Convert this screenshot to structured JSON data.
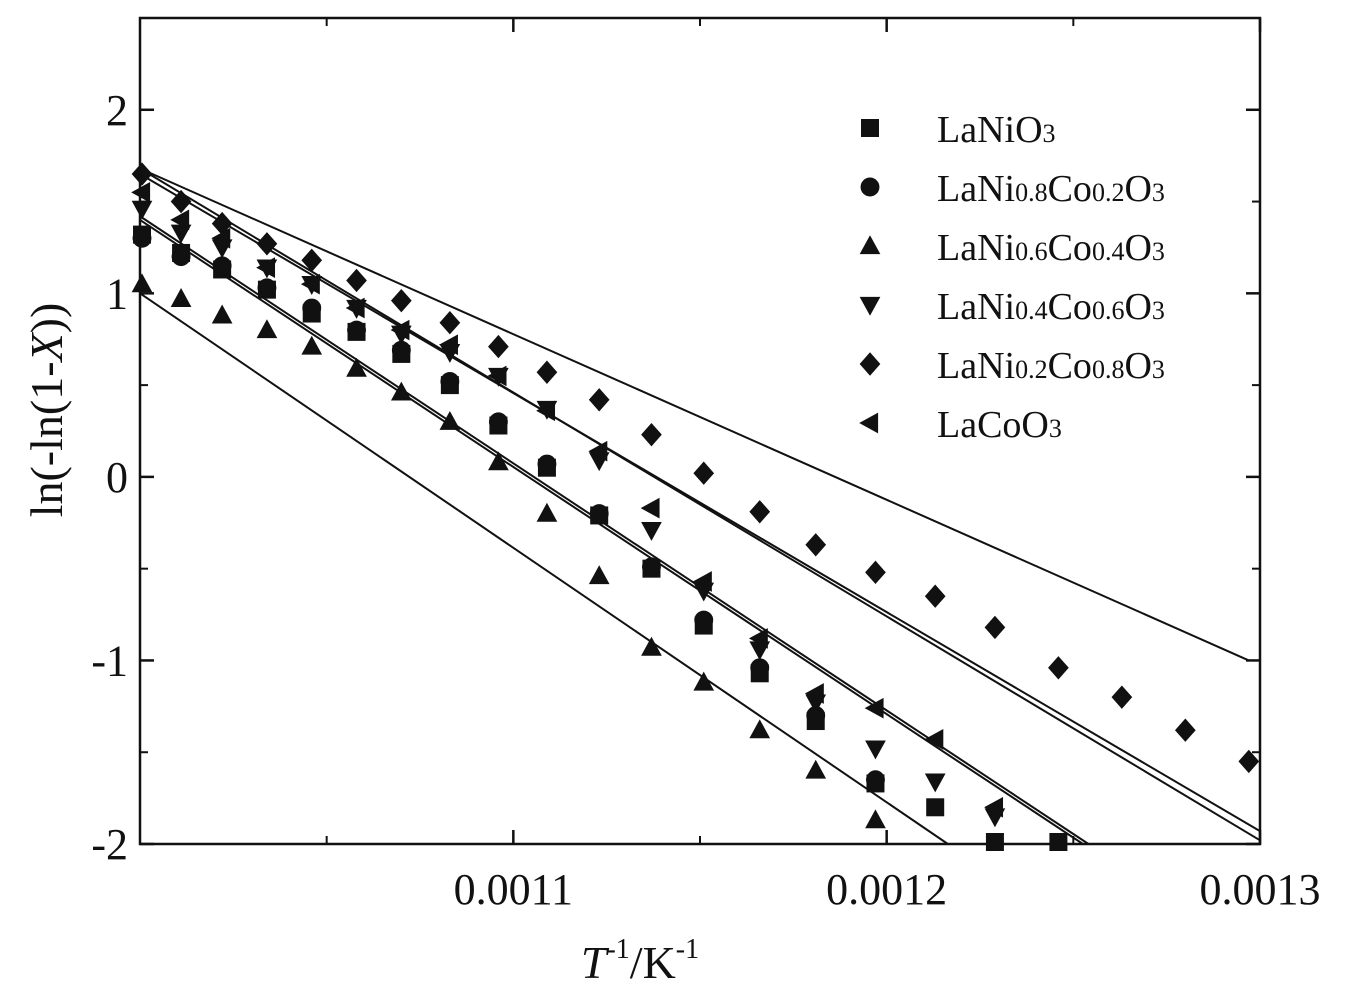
{
  "chart_data": {
    "type": "scatter",
    "title": "",
    "xlabel": {
      "italic": "T",
      "sup1": "-1",
      "mid": "/K",
      "sup2": "-1"
    },
    "ylabel": {
      "before": "ln(-ln(1-",
      "italic": "X",
      "after": "))"
    },
    "xlim": [
      0.001,
      0.0013
    ],
    "ylim": [
      -2,
      2.5
    ],
    "x_ticks": [
      0.0011,
      0.0012,
      0.0013
    ],
    "x_tick_labels": [
      "0.0011",
      "0.0012",
      "0.0013"
    ],
    "y_ticks": [
      -2,
      -1,
      0,
      1,
      2
    ],
    "y_tick_labels": [
      "-2",
      "-1",
      "0",
      "1",
      "2"
    ],
    "grid": false,
    "legend_position": "top-right",
    "series": [
      {
        "name": "LaNiO3",
        "label_parts": [
          [
            "LaNiO",
            ""
          ],
          [
            "3",
            "sub"
          ]
        ],
        "marker": "square",
        "x": [
          0.001,
          0.001011,
          0.001022,
          0.001034,
          0.001046,
          0.001058,
          0.00107,
          0.001083,
          0.001096,
          0.001109,
          0.001123,
          0.001137,
          0.001151,
          0.001166,
          0.001181,
          0.001197,
          0.001213,
          0.001229,
          0.001246
        ],
        "y": [
          1.32,
          1.22,
          1.13,
          1.02,
          0.89,
          0.79,
          0.67,
          0.5,
          0.28,
          0.05,
          -0.21,
          -0.5,
          -0.81,
          -1.07,
          -1.33,
          -1.67,
          -1.8,
          -2.0,
          -2.05
        ],
        "fit": [
          [
            0.001,
            1.42
          ],
          [
            0.00126,
            -2.08
          ]
        ]
      },
      {
        "name": "LaNi0.8Co0.2O3",
        "label_parts": [
          [
            "LaNi",
            ""
          ],
          [
            "0.8",
            "sub"
          ],
          [
            "Co",
            ""
          ],
          [
            "0.2",
            "sub"
          ],
          [
            "O",
            ""
          ],
          [
            "3",
            "sub"
          ]
        ],
        "marker": "circle",
        "x": [
          0.001,
          0.001011,
          0.001022,
          0.001034,
          0.001046,
          0.001058,
          0.00107,
          0.001083,
          0.001096,
          0.001109,
          0.001123,
          0.001137,
          0.001151,
          0.001166,
          0.001181,
          0.001197
        ],
        "y": [
          1.3,
          1.2,
          1.15,
          1.03,
          0.92,
          0.8,
          0.69,
          0.52,
          0.3,
          0.07,
          -0.2,
          -0.49,
          -0.78,
          -1.04,
          -1.3,
          -1.65
        ],
        "fit": [
          [
            0.001,
            1.4
          ],
          [
            0.00126,
            -2.1
          ]
        ]
      },
      {
        "name": "LaNi0.6Co0.4O3",
        "label_parts": [
          [
            "LaNi",
            ""
          ],
          [
            "0.6",
            "sub"
          ],
          [
            "Co",
            ""
          ],
          [
            "0.4",
            "sub"
          ],
          [
            "O",
            ""
          ],
          [
            "3",
            "sub"
          ]
        ],
        "marker": "triangle-up",
        "x": [
          0.001,
          0.001011,
          0.001022,
          0.001034,
          0.001046,
          0.001058,
          0.00107,
          0.001083,
          0.001096,
          0.001109,
          0.001123,
          0.001137,
          0.001151,
          0.001166,
          0.001181,
          0.001197
        ],
        "y": [
          1.05,
          0.97,
          0.88,
          0.8,
          0.71,
          0.59,
          0.46,
          0.3,
          0.08,
          -0.2,
          -0.54,
          -0.93,
          -1.12,
          -1.38,
          -1.6,
          -1.87
        ],
        "fit": [
          [
            0.001,
            1.0
          ],
          [
            0.00122,
            -2.05
          ]
        ]
      },
      {
        "name": "LaNi0.4Co0.6O3",
        "label_parts": [
          [
            "LaNi",
            ""
          ],
          [
            "0.4",
            "sub"
          ],
          [
            "Co",
            ""
          ],
          [
            "0.6",
            "sub"
          ],
          [
            "O",
            ""
          ],
          [
            "3",
            "sub"
          ]
        ],
        "marker": "triangle-down",
        "x": [
          0.001,
          0.001011,
          0.001022,
          0.001034,
          0.001046,
          0.001058,
          0.00107,
          0.001083,
          0.001096,
          0.001109,
          0.001123,
          0.001137,
          0.001151,
          0.001166,
          0.001181,
          0.001197,
          0.001213,
          0.001229
        ],
        "y": [
          1.46,
          1.33,
          1.25,
          1.14,
          1.05,
          0.92,
          0.78,
          0.68,
          0.55,
          0.37,
          0.09,
          -0.29,
          -0.62,
          -0.94,
          -1.23,
          -1.48,
          -1.66,
          -1.85
        ],
        "fit": [
          [
            0.001,
            1.68
          ],
          [
            0.0013,
            -1.98
          ]
        ]
      },
      {
        "name": "LaNi0.2Co0.8O3",
        "label_parts": [
          [
            "LaNi",
            ""
          ],
          [
            "0.2",
            "sub"
          ],
          [
            "Co",
            ""
          ],
          [
            "0.8",
            "sub"
          ],
          [
            "O",
            ""
          ],
          [
            "3",
            "sub"
          ]
        ],
        "marker": "diamond",
        "x": [
          0.001,
          0.001011,
          0.001022,
          0.001034,
          0.001046,
          0.001058,
          0.00107,
          0.001083,
          0.001096,
          0.001109,
          0.001123,
          0.001137,
          0.001151,
          0.001166,
          0.001181,
          0.001197,
          0.001213,
          0.001229,
          0.001246,
          0.001263,
          0.00128,
          0.001297
        ],
        "y": [
          1.65,
          1.5,
          1.38,
          1.27,
          1.18,
          1.07,
          0.96,
          0.84,
          0.71,
          0.57,
          0.42,
          0.23,
          0.02,
          -0.19,
          -0.37,
          -0.52,
          -0.65,
          -0.82,
          -1.04,
          -1.2,
          -1.38,
          -1.55
        ],
        "fit": [
          [
            0.001,
            1.68
          ],
          [
            0.001297,
            -1.0
          ]
        ]
      },
      {
        "name": "LaCoO3",
        "label_parts": [
          [
            "LaCoO",
            ""
          ],
          [
            "3",
            "sub"
          ]
        ],
        "marker": "triangle-left",
        "x": [
          0.001,
          0.001011,
          0.001022,
          0.001034,
          0.001046,
          0.001058,
          0.00107,
          0.001083,
          0.001096,
          0.001109,
          0.001123,
          0.001137,
          0.001151,
          0.001166,
          0.001181,
          0.001197,
          0.001213,
          0.001229
        ],
        "y": [
          1.55,
          1.4,
          1.3,
          1.14,
          1.05,
          0.92,
          0.8,
          0.72,
          0.55,
          0.36,
          0.14,
          -0.17,
          -0.57,
          -0.88,
          -1.18,
          -1.26,
          -1.43,
          -1.8
        ],
        "fit": [
          [
            0.001,
            1.65
          ],
          [
            0.0013,
            -1.93
          ]
        ]
      }
    ]
  }
}
